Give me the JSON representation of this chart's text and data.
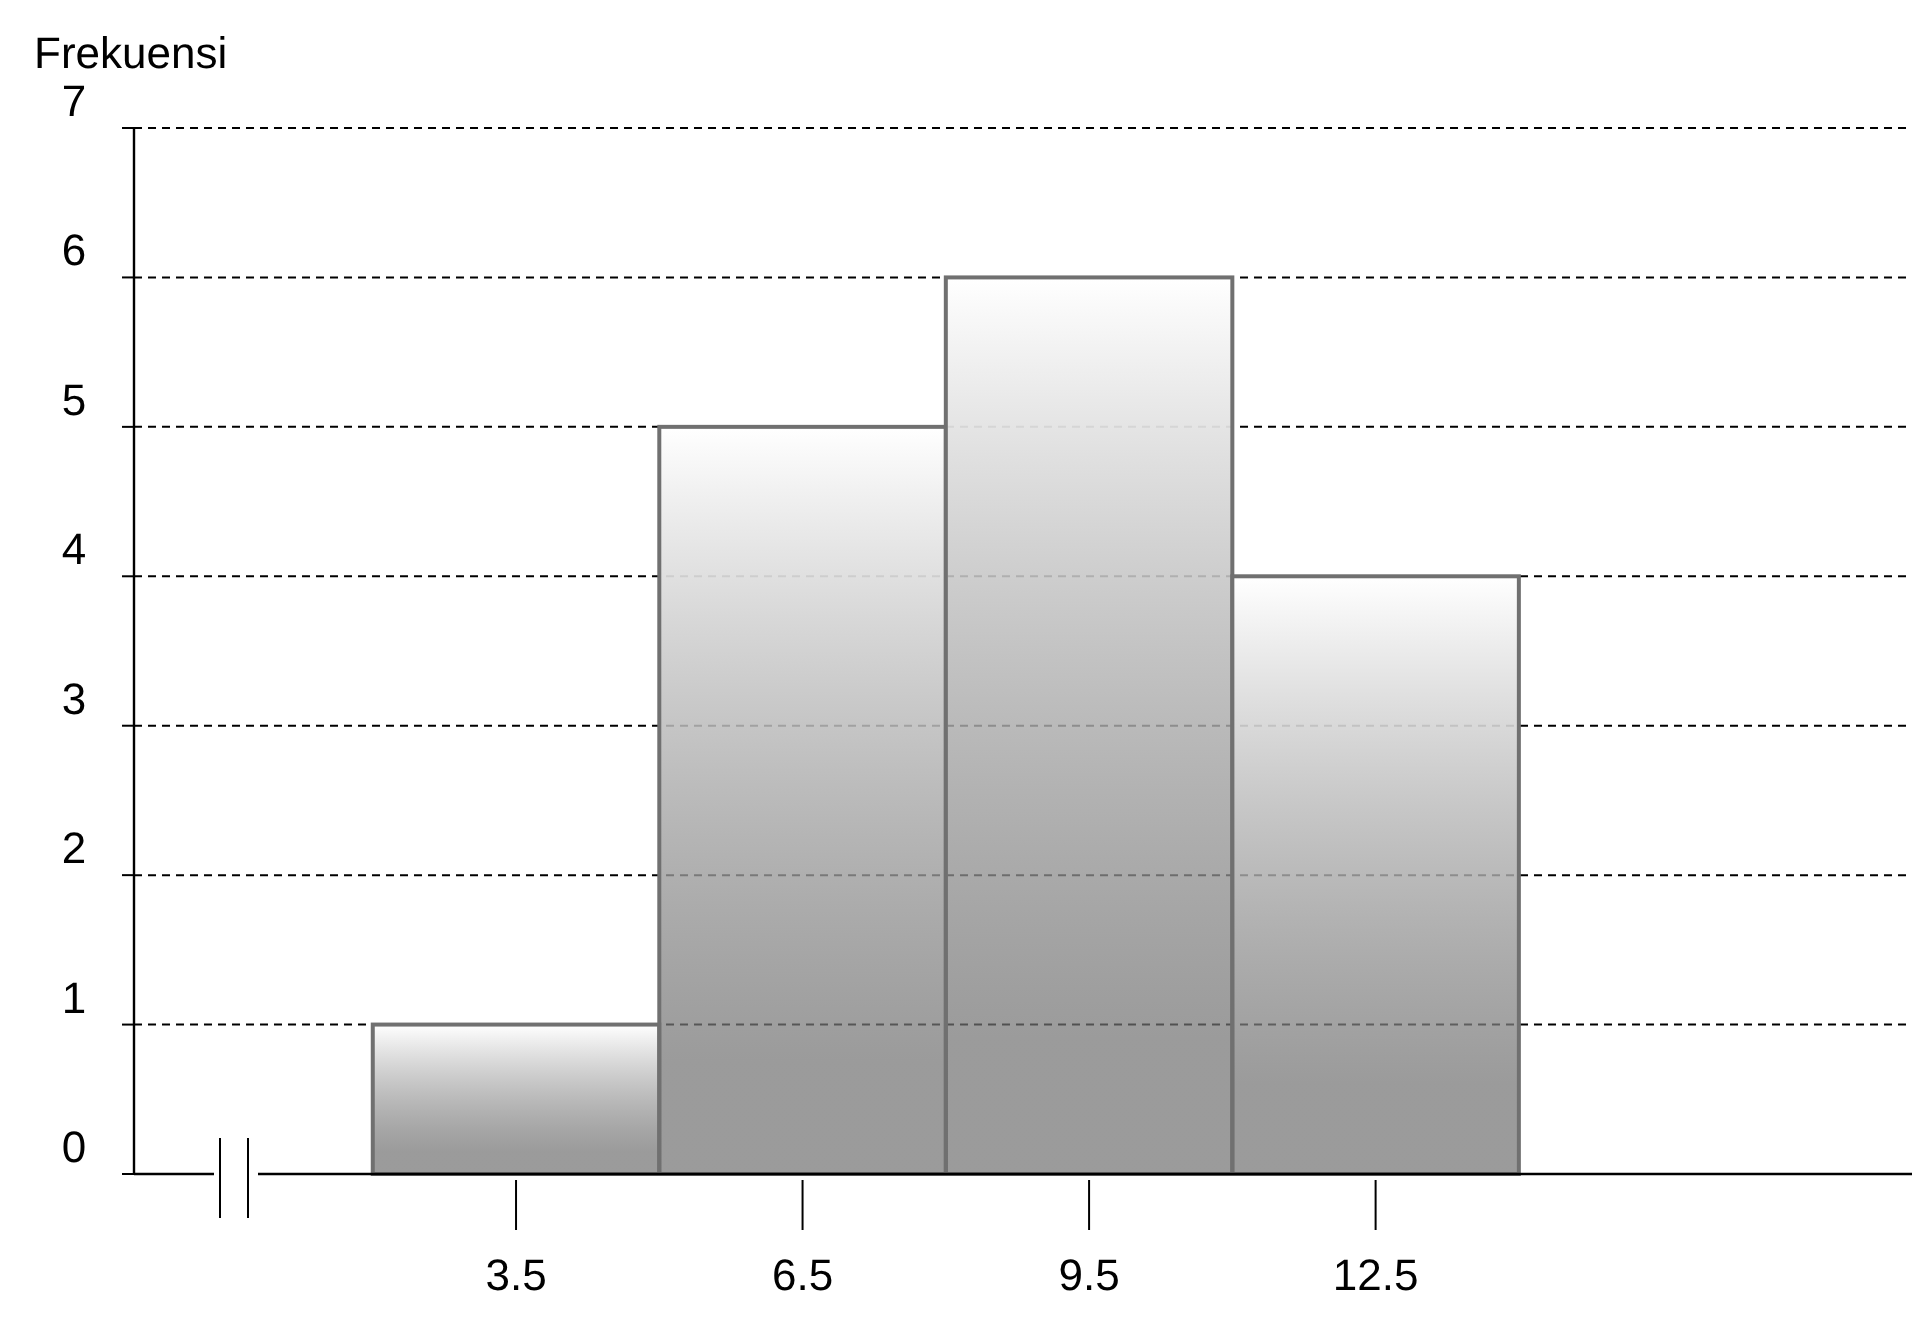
{
  "chart_data": {
    "type": "histogram",
    "ylabel": "Frekuensi",
    "bins": [
      2,
      5,
      8,
      11,
      14
    ],
    "values": [
      1,
      5,
      6,
      4
    ],
    "color": "#707070",
    "xlim": [
      -0.5,
      18.2
    ],
    "xticks": [
      3.5,
      6.5,
      9.5,
      12.5
    ],
    "ylim": [
      0,
      7
    ],
    "yticks": [
      0,
      1,
      2,
      3,
      4,
      5,
      6,
      7
    ],
    "grid": "y"
  }
}
